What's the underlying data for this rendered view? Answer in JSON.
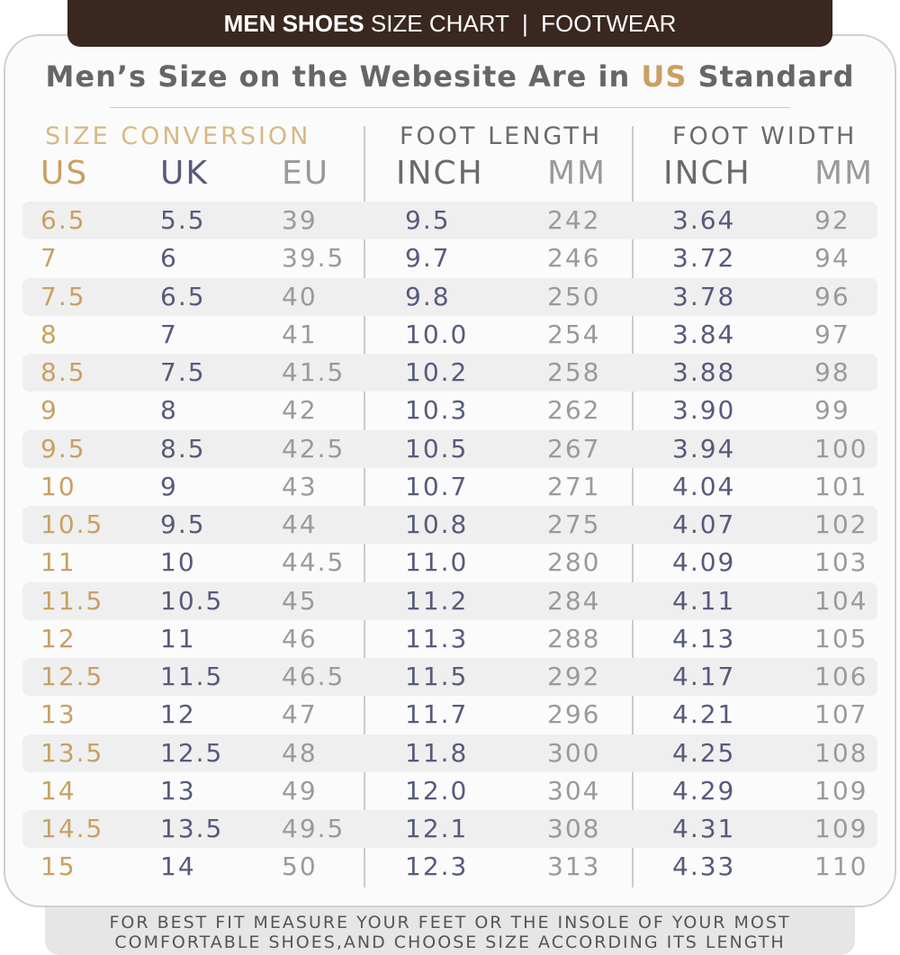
{
  "header": {
    "bold": "MEN SHOES",
    "rest": "SIZE CHART",
    "separator": "|",
    "category": "FOOTWEAR"
  },
  "subtitle": {
    "before": "Men’s Size on the Webesite Are in ",
    "highlight": "US",
    "after": " Standard"
  },
  "groups": [
    "SIZE CONVERSION",
    "FOOT LENGTH",
    "FOOT WIDTH"
  ],
  "table": {
    "columns": [
      "US",
      "UK",
      "EU",
      "INCH",
      "MM",
      "INCH",
      "MM"
    ],
    "rows": [
      [
        "6.5",
        "5.5",
        "39",
        "9.5",
        "242",
        "3.64",
        "92"
      ],
      [
        "7",
        "6",
        "39.5",
        "9.7",
        "246",
        "3.72",
        "94"
      ],
      [
        "7.5",
        "6.5",
        "40",
        "9.8",
        "250",
        "3.78",
        "96"
      ],
      [
        "8",
        "7",
        "41",
        "10.0",
        "254",
        "3.84",
        "97"
      ],
      [
        "8.5",
        "7.5",
        "41.5",
        "10.2",
        "258",
        "3.88",
        "98"
      ],
      [
        "9",
        "8",
        "42",
        "10.3",
        "262",
        "3.90",
        "99"
      ],
      [
        "9.5",
        "8.5",
        "42.5",
        "10.5",
        "267",
        "3.94",
        "100"
      ],
      [
        "10",
        "9",
        "43",
        "10.7",
        "271",
        "4.04",
        "101"
      ],
      [
        "10.5",
        "9.5",
        "44",
        "10.8",
        "275",
        "4.07",
        "102"
      ],
      [
        "11",
        "10",
        "44.5",
        "11.0",
        "280",
        "4.09",
        "103"
      ],
      [
        "11.5",
        "10.5",
        "45",
        "11.2",
        "284",
        "4.11",
        "104"
      ],
      [
        "12",
        "11",
        "46",
        "11.3",
        "288",
        "4.13",
        "105"
      ],
      [
        "12.5",
        "11.5",
        "46.5",
        "11.5",
        "292",
        "4.17",
        "106"
      ],
      [
        "13",
        "12",
        "47",
        "11.7",
        "296",
        "4.21",
        "107"
      ],
      [
        "13.5",
        "12.5",
        "48",
        "11.8",
        "300",
        "4.25",
        "108"
      ],
      [
        "14",
        "13",
        "49",
        "12.0",
        "304",
        "4.29",
        "109"
      ],
      [
        "14.5",
        "13.5",
        "49.5",
        "12.1",
        "308",
        "4.31",
        "109"
      ],
      [
        "15",
        "14",
        "50",
        "12.3",
        "313",
        "4.33",
        "110"
      ]
    ]
  },
  "footer": {
    "line1": "FOR BEST FIT MEASURE YOUR FEET OR THE INSOLE OF YOUR MOST",
    "line2": "COMFORTABLE SHOES,AND CHOOSE SIZE ACCORDING ITS LENGTH"
  }
}
